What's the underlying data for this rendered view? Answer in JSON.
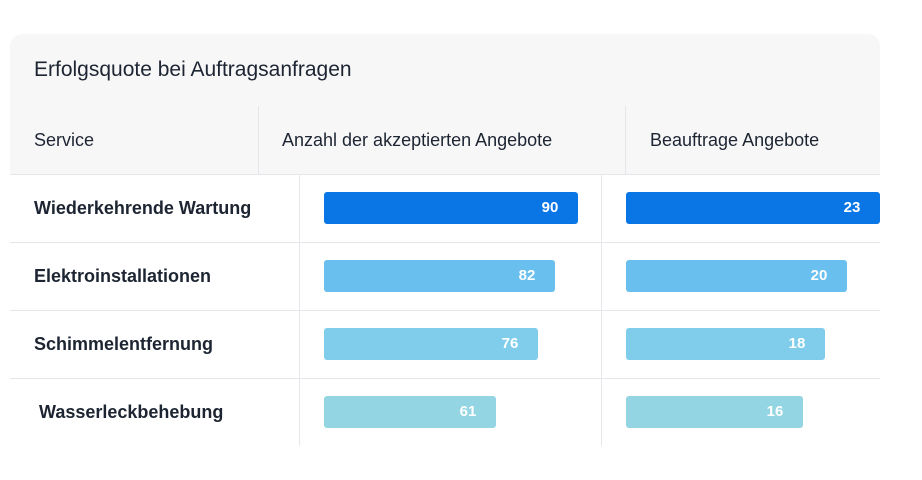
{
  "chart_data": {
    "type": "table",
    "title": "Erfolgsquote bei Auftragsanfragen",
    "columns": [
      "Service",
      "Anzahl der akzeptierten Angebote",
      "Beauftrage Angebote"
    ],
    "categories": [
      "Wiederkehrende Wartung",
      "Elektroinstallationen",
      "Schimmelentfernung",
      "Wasserleckbehebung"
    ],
    "series": [
      {
        "name": "Anzahl der akzeptierten Angebote",
        "values": [
          90,
          82,
          76,
          61
        ],
        "max": 90
      },
      {
        "name": "Beauftrage Angebote",
        "values": [
          23,
          20,
          18,
          16
        ],
        "max": 23
      }
    ],
    "colors": [
      "#0a76e6",
      "#69bfee",
      "#7fcdea",
      "#93d5e3"
    ]
  }
}
